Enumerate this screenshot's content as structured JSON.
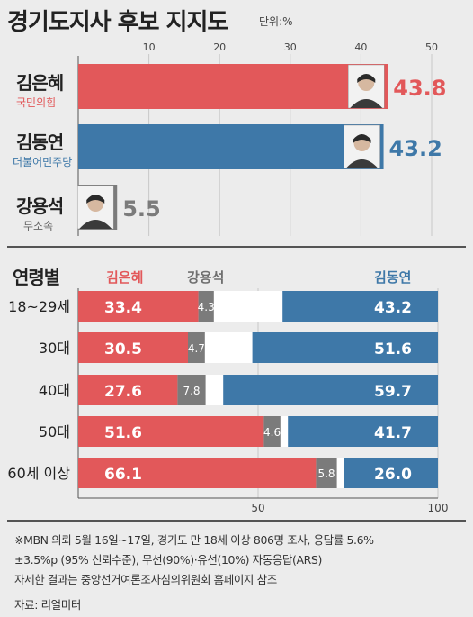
{
  "title": "경기도지사 후보 지지도",
  "unit": "단위:%",
  "colors": {
    "red": "#e2585a",
    "blue": "#3e78a8",
    "gray": "#7b7b7b",
    "white": "#ffffff"
  },
  "chart_data": [
    {
      "type": "bar",
      "orientation": "horizontal",
      "x_ticks": [
        "10",
        "20",
        "30",
        "40",
        "50"
      ],
      "xlim": [
        0,
        50
      ],
      "candidates": [
        {
          "name": "김은혜",
          "party": "국민의힘",
          "value": 43.8,
          "value_label": "43.8",
          "color": "#e2585a"
        },
        {
          "name": "김동연",
          "party": "더불어민주당",
          "value": 43.2,
          "value_label": "43.2",
          "color": "#3e78a8"
        },
        {
          "name": "강용석",
          "party": "무소속",
          "value": 5.5,
          "value_label": "5.5",
          "color": "#7b7b7b"
        }
      ]
    },
    {
      "type": "bar",
      "orientation": "horizontal-stacked",
      "title": "연령별",
      "legend": [
        "김은혜",
        "강용석",
        "김동연"
      ],
      "x_ticks": [
        "50",
        "100"
      ],
      "xlim": [
        0,
        100
      ],
      "rows": [
        {
          "label": "18~29세",
          "kim_eunhye": 33.4,
          "kang": 4.3,
          "kim_dongyeon": 43.2,
          "l1": "33.4",
          "l2": "4.3",
          "l3": "43.2"
        },
        {
          "label": "30대",
          "kim_eunhye": 30.5,
          "kang": 4.7,
          "kim_dongyeon": 51.6,
          "l1": "30.5",
          "l2": "4.7",
          "l3": "51.6"
        },
        {
          "label": "40대",
          "kim_eunhye": 27.6,
          "kang": 7.8,
          "kim_dongyeon": 59.7,
          "l1": "27.6",
          "l2": "7.8",
          "l3": "59.7"
        },
        {
          "label": "50대",
          "kim_eunhye": 51.6,
          "kang": 4.6,
          "kim_dongyeon": 41.7,
          "l1": "51.6",
          "l2": "4.6",
          "l3": "41.7"
        },
        {
          "label": "60세 이상",
          "kim_eunhye": 66.1,
          "kang": 5.8,
          "kim_dongyeon": 26.0,
          "l1": "66.1",
          "l2": "5.8",
          "l3": "26.0"
        }
      ]
    }
  ],
  "notes": [
    "※MBN 의뢰 5월 16일~17일, 경기도 만 18세 이상 806명 조사, 응답률 5.6%",
    "±3.5%p (95% 신뢰수준), 무선(90%)·유선(10%) 자동응답(ARS)",
    "자세한 결과는 중앙선거여론조사심의위원회 홈페이지 참조"
  ],
  "source": "자료: 리얼미터"
}
